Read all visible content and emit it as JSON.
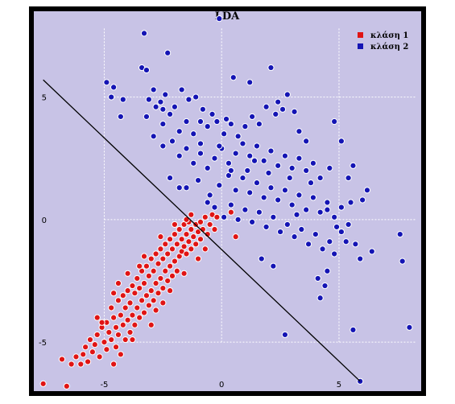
{
  "chart_data": {
    "type": "scatter",
    "title": "LDA",
    "xlabel": "",
    "ylabel": "",
    "xlim": [
      -8,
      8.5
    ],
    "ylim": [
      -7,
      8.5
    ],
    "xticks": [
      -5,
      0,
      5
    ],
    "yticks": [
      -5,
      0,
      5
    ],
    "grid": true,
    "legend": "top-right",
    "colors": {
      "background": "#c8c3e6",
      "frame": "#000000",
      "grid": "#ffffff",
      "class1": "#e01414",
      "class2": "#1414b4",
      "marker_edge": "#ffffff",
      "decision_line": "#000000"
    },
    "decision_line": {
      "x": [
        -7.6,
        5.9
      ],
      "y": [
        5.7,
        -6.6
      ]
    },
    "series": [
      {
        "name": "κλάση 1",
        "points": [
          [
            -7.6,
            -6.7
          ],
          [
            -6.6,
            -6.8
          ],
          [
            -6.4,
            -5.9
          ],
          [
            -6.2,
            -5.6
          ],
          [
            -6.0,
            -5.9
          ],
          [
            -5.9,
            -5.5
          ],
          [
            -5.8,
            -5.2
          ],
          [
            -5.7,
            -5.8
          ],
          [
            -5.6,
            -4.9
          ],
          [
            -5.5,
            -5.4
          ],
          [
            -5.4,
            -5.1
          ],
          [
            -5.3,
            -4.7
          ],
          [
            -5.2,
            -5.6
          ],
          [
            -5.1,
            -4.4
          ],
          [
            -5.0,
            -5.0
          ],
          [
            -4.9,
            -4.2
          ],
          [
            -4.9,
            -5.3
          ],
          [
            -4.8,
            -4.6
          ],
          [
            -4.7,
            -3.6
          ],
          [
            -4.7,
            -4.9
          ],
          [
            -4.6,
            -4.0
          ],
          [
            -4.6,
            -5.9
          ],
          [
            -4.5,
            -4.4
          ],
          [
            -4.5,
            -5.2
          ],
          [
            -4.4,
            -3.3
          ],
          [
            -4.4,
            -4.7
          ],
          [
            -4.3,
            -3.9
          ],
          [
            -4.3,
            -5.5
          ],
          [
            -4.2,
            -4.3
          ],
          [
            -4.2,
            -3.1
          ],
          [
            -4.1,
            -4.9
          ],
          [
            -4.1,
            -3.6
          ],
          [
            -4.0,
            -2.9
          ],
          [
            -4.0,
            -4.1
          ],
          [
            -3.9,
            -4.6
          ],
          [
            -3.9,
            -3.4
          ],
          [
            -3.8,
            -2.7
          ],
          [
            -3.8,
            -3.9
          ],
          [
            -3.7,
            -4.3
          ],
          [
            -3.7,
            -3.0
          ],
          [
            -3.6,
            -3.6
          ],
          [
            -3.6,
            -2.4
          ],
          [
            -3.5,
            -4.0
          ],
          [
            -3.5,
            -2.8
          ],
          [
            -3.4,
            -3.3
          ],
          [
            -3.4,
            -2.1
          ],
          [
            -3.3,
            -3.8
          ],
          [
            -3.3,
            -2.6
          ],
          [
            -3.2,
            -3.1
          ],
          [
            -3.2,
            -1.9
          ],
          [
            -3.1,
            -3.5
          ],
          [
            -3.1,
            -2.3
          ],
          [
            -3.0,
            -2.9
          ],
          [
            -3.0,
            -1.6
          ],
          [
            -2.9,
            -3.3
          ],
          [
            -2.9,
            -2.1
          ],
          [
            -2.8,
            -2.6
          ],
          [
            -2.8,
            -1.4
          ],
          [
            -2.7,
            -3.0
          ],
          [
            -2.7,
            -1.8
          ],
          [
            -2.6,
            -2.4
          ],
          [
            -2.6,
            -1.2
          ],
          [
            -2.5,
            -2.8
          ],
          [
            -2.5,
            -1.6
          ],
          [
            -2.4,
            -2.1
          ],
          [
            -2.4,
            -1.0
          ],
          [
            -2.3,
            -2.5
          ],
          [
            -2.3,
            -1.4
          ],
          [
            -2.2,
            -1.9
          ],
          [
            -2.2,
            -0.8
          ],
          [
            -2.1,
            -2.3
          ],
          [
            -2.1,
            -1.2
          ],
          [
            -2.0,
            -1.7
          ],
          [
            -2.0,
            -0.6
          ],
          [
            -1.9,
            -2.1
          ],
          [
            -1.9,
            -1.0
          ],
          [
            -1.8,
            -1.5
          ],
          [
            -1.8,
            -0.4
          ],
          [
            -1.7,
            -1.3
          ],
          [
            -1.7,
            -0.8
          ],
          [
            -1.6,
            -0.2
          ],
          [
            -1.6,
            -1.1
          ],
          [
            -1.5,
            -0.6
          ],
          [
            -1.5,
            -1.4
          ],
          [
            -1.4,
            -0.9
          ],
          [
            -1.4,
            -0.1
          ],
          [
            -1.3,
            -0.4
          ],
          [
            -1.3,
            -1.2
          ],
          [
            -1.2,
            -0.7
          ],
          [
            -1.1,
            -0.2
          ],
          [
            -1.1,
            -1.0
          ],
          [
            -1.0,
            -0.5
          ],
          [
            -0.9,
            -0.1
          ],
          [
            -0.9,
            -0.8
          ],
          [
            -0.8,
            -0.4
          ],
          [
            -0.7,
            0.1
          ],
          [
            -0.6,
            -0.6
          ],
          [
            -0.5,
            -0.2
          ],
          [
            -0.4,
            0.2
          ],
          [
            -0.3,
            -0.4
          ],
          [
            -0.2,
            0.1
          ],
          [
            0.4,
            0.3
          ],
          [
            0.6,
            -0.7
          ],
          [
            -3.8,
            -4.9
          ],
          [
            -4.0,
            -2.2
          ],
          [
            -3.3,
            -1.5
          ],
          [
            -2.6,
            -0.7
          ],
          [
            -2.0,
            -0.2
          ],
          [
            -1.5,
            0.0
          ],
          [
            -5.1,
            -4.2
          ],
          [
            -4.4,
            -2.6
          ],
          [
            -3.5,
            -1.9
          ],
          [
            -2.8,
            -3.7
          ],
          [
            -2.2,
            -2.9
          ],
          [
            -1.6,
            -2.2
          ],
          [
            -1.0,
            -1.6
          ],
          [
            -0.7,
            -1.2
          ],
          [
            -3.0,
            -4.3
          ],
          [
            -2.5,
            -3.4
          ],
          [
            -4.6,
            -3.0
          ],
          [
            -5.3,
            -4.0
          ],
          [
            -6.8,
            -5.7
          ],
          [
            -1.3,
            0.2
          ]
        ]
      },
      {
        "name": "κλάση 2",
        "points": [
          [
            -0.1,
            8.2
          ],
          [
            -3.3,
            7.6
          ],
          [
            -2.3,
            6.8
          ],
          [
            -3.4,
            6.2
          ],
          [
            -3.2,
            6.1
          ],
          [
            -4.9,
            5.6
          ],
          [
            -4.6,
            5.4
          ],
          [
            -4.7,
            5.0
          ],
          [
            -4.3,
            4.2
          ],
          [
            -3.1,
            4.9
          ],
          [
            -2.9,
            5.3
          ],
          [
            -2.6,
            4.8
          ],
          [
            -2.4,
            5.1
          ],
          [
            -2.0,
            4.6
          ],
          [
            -1.7,
            5.3
          ],
          [
            -1.4,
            4.9
          ],
          [
            -1.1,
            5.0
          ],
          [
            -0.8,
            4.5
          ],
          [
            -0.4,
            4.3
          ],
          [
            -3.2,
            4.2
          ],
          [
            -2.8,
            4.6
          ],
          [
            -2.5,
            3.9
          ],
          [
            -2.2,
            4.3
          ],
          [
            -1.8,
            3.6
          ],
          [
            -1.5,
            4.0
          ],
          [
            -1.2,
            3.5
          ],
          [
            -0.9,
            3.1
          ],
          [
            -0.6,
            3.8
          ],
          [
            -0.2,
            4.0
          ],
          [
            0.1,
            3.5
          ],
          [
            0.4,
            3.9
          ],
          [
            0.7,
            3.4
          ],
          [
            1.0,
            3.8
          ],
          [
            1.3,
            4.2
          ],
          [
            1.6,
            3.9
          ],
          [
            1.9,
            4.6
          ],
          [
            2.3,
            4.3
          ],
          [
            2.6,
            4.5
          ],
          [
            3.1,
            4.4
          ],
          [
            1.2,
            5.6
          ],
          [
            2.1,
            6.2
          ],
          [
            2.4,
            4.8
          ],
          [
            2.8,
            5.1
          ],
          [
            -2.9,
            3.4
          ],
          [
            -2.5,
            3.0
          ],
          [
            -2.1,
            3.2
          ],
          [
            -1.8,
            2.6
          ],
          [
            -1.5,
            2.9
          ],
          [
            -1.2,
            2.3
          ],
          [
            -0.9,
            2.7
          ],
          [
            -0.6,
            2.1
          ],
          [
            -0.3,
            2.5
          ],
          [
            0.0,
            2.9
          ],
          [
            0.3,
            2.3
          ],
          [
            0.6,
            2.7
          ],
          [
            0.9,
            3.1
          ],
          [
            1.2,
            2.6
          ],
          [
            1.5,
            3.0
          ],
          [
            1.8,
            2.4
          ],
          [
            2.1,
            2.8
          ],
          [
            2.4,
            2.2
          ],
          [
            2.7,
            2.6
          ],
          [
            3.0,
            2.1
          ],
          [
            3.3,
            2.5
          ],
          [
            3.6,
            2.0
          ],
          [
            3.9,
            2.3
          ],
          [
            4.2,
            1.7
          ],
          [
            4.6,
            2.1
          ],
          [
            5.1,
            3.2
          ],
          [
            4.8,
            4.0
          ],
          [
            5.6,
            2.2
          ],
          [
            5.4,
            1.7
          ],
          [
            6.2,
            1.2
          ],
          [
            -2.2,
            1.7
          ],
          [
            -1.5,
            1.3
          ],
          [
            -1.0,
            1.6
          ],
          [
            -0.5,
            1.0
          ],
          [
            -0.1,
            1.4
          ],
          [
            0.3,
            1.8
          ],
          [
            0.6,
            1.2
          ],
          [
            0.9,
            1.7
          ],
          [
            1.2,
            1.1
          ],
          [
            1.5,
            1.5
          ],
          [
            1.8,
            0.9
          ],
          [
            2.1,
            1.3
          ],
          [
            2.4,
            0.8
          ],
          [
            2.7,
            1.2
          ],
          [
            3.0,
            0.6
          ],
          [
            3.3,
            1.0
          ],
          [
            3.6,
            0.4
          ],
          [
            3.9,
            0.9
          ],
          [
            4.2,
            0.3
          ],
          [
            4.5,
            0.7
          ],
          [
            4.8,
            0.1
          ],
          [
            5.1,
            0.5
          ],
          [
            5.5,
            0.7
          ],
          [
            -0.3,
            0.5
          ],
          [
            0.1,
            0.1
          ],
          [
            0.4,
            0.6
          ],
          [
            0.7,
            0.0
          ],
          [
            1.0,
            0.4
          ],
          [
            1.3,
            -0.1
          ],
          [
            1.6,
            0.3
          ],
          [
            1.9,
            -0.3
          ],
          [
            2.2,
            0.1
          ],
          [
            2.5,
            -0.5
          ],
          [
            2.8,
            -0.2
          ],
          [
            3.1,
            -0.7
          ],
          [
            3.4,
            -0.4
          ],
          [
            3.7,
            -1.0
          ],
          [
            4.0,
            -0.6
          ],
          [
            4.3,
            -1.2
          ],
          [
            4.6,
            -0.9
          ],
          [
            4.9,
            -0.3
          ],
          [
            5.3,
            -0.9
          ],
          [
            5.7,
            -1.0
          ],
          [
            6.4,
            -1.3
          ],
          [
            7.6,
            -0.6
          ],
          [
            7.7,
            -1.7
          ],
          [
            8.0,
            -4.4
          ],
          [
            5.6,
            -4.5
          ],
          [
            5.9,
            -6.6
          ],
          [
            4.8,
            -1.4
          ],
          [
            4.1,
            -2.4
          ],
          [
            4.4,
            -2.7
          ],
          [
            4.5,
            -2.1
          ],
          [
            4.2,
            -3.2
          ],
          [
            5.9,
            -1.6
          ],
          [
            5.1,
            -0.5
          ],
          [
            2.7,
            -4.7
          ],
          [
            1.7,
            -1.6
          ],
          [
            2.2,
            -1.9
          ],
          [
            -0.9,
            4.0
          ],
          [
            0.5,
            5.8
          ],
          [
            -2.5,
            4.5
          ],
          [
            -4.2,
            4.9
          ],
          [
            3.6,
            3.2
          ],
          [
            3.3,
            3.6
          ],
          [
            0.2,
            4.1
          ],
          [
            -0.1,
            3.0
          ],
          [
            1.1,
            2.0
          ],
          [
            1.4,
            2.4
          ],
          [
            2.0,
            1.9
          ],
          [
            2.9,
            1.7
          ],
          [
            3.2,
            0.2
          ],
          [
            0.4,
            2.0
          ],
          [
            -1.8,
            1.3
          ],
          [
            -0.6,
            0.7
          ],
          [
            5.4,
            -0.2
          ],
          [
            6.0,
            0.8
          ],
          [
            4.5,
            0.4
          ],
          [
            3.8,
            1.5
          ]
        ]
      }
    ]
  }
}
